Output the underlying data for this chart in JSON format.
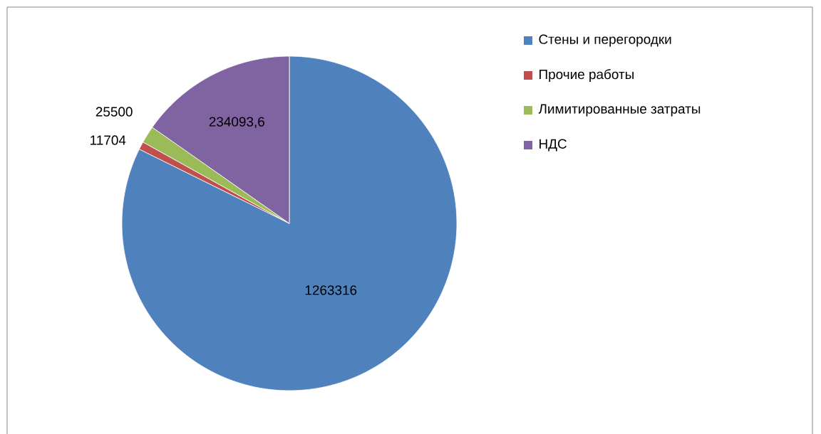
{
  "chart_data": {
    "type": "pie",
    "categories": [
      "Стены и перегородки",
      "Прочие работы",
      "Лимитированные затраты",
      "НДС"
    ],
    "values": [
      1263316,
      11704,
      25500,
      234093.6
    ],
    "colors": [
      "#4f81bd",
      "#c0504d",
      "#9bbb59",
      "#8064a2"
    ],
    "value_labels": [
      "1263316",
      "11704",
      "25500",
      "234093,6"
    ],
    "legend": "right"
  }
}
